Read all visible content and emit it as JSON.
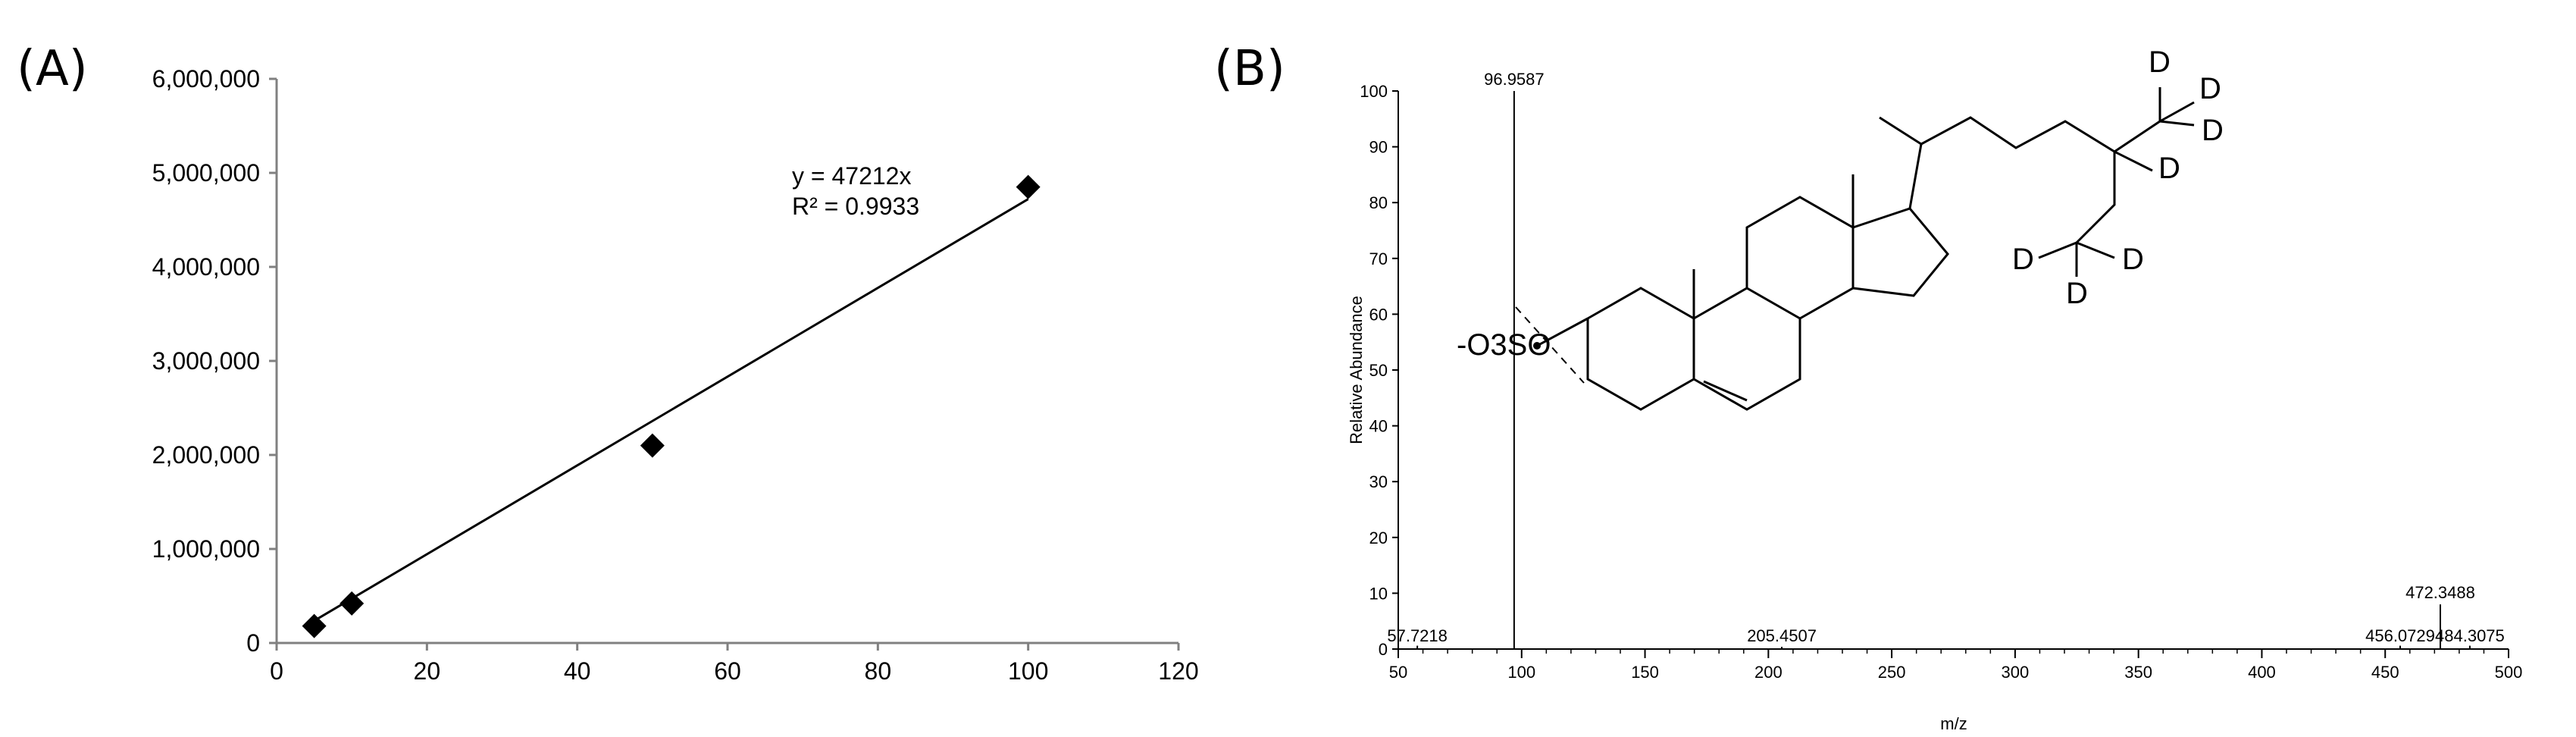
{
  "panel_labels": {
    "a": "(A)",
    "b": "(B)"
  },
  "chart_data": [
    {
      "type": "scatter",
      "panel": "(A)",
      "x": [
        5,
        10,
        50,
        100
      ],
      "y": [
        180000,
        420000,
        2100000,
        4850000
      ],
      "marker": "diamond",
      "xlim": [
        0,
        120
      ],
      "ylim": [
        0,
        6000000
      ],
      "xticks": [
        0,
        20,
        40,
        60,
        80,
        100,
        120
      ],
      "yticks": [
        0,
        1000000,
        2000000,
        3000000,
        4000000,
        5000000,
        6000000
      ],
      "xtick_labels": [
        "0",
        "20",
        "40",
        "60",
        "80",
        "100",
        "120"
      ],
      "ytick_labels": [
        "0",
        "1,000,000",
        "2,000,000",
        "3,000,000",
        "4,000,000",
        "5,000,000",
        "6,000,000"
      ],
      "trendline": {
        "slope": 47212,
        "intercept": 0,
        "x_range": [
          5,
          100
        ]
      },
      "equation": "y = 47212x",
      "r_squared": "R² = 0.9933",
      "grid": false,
      "xlabel": "",
      "ylabel": ""
    },
    {
      "type": "bar",
      "panel": "(B)",
      "xlabel": "m/z",
      "ylabel": "Relative Abundance",
      "xlim": [
        50,
        500
      ],
      "ylim": [
        0,
        100
      ],
      "xticks": [
        50,
        100,
        150,
        200,
        250,
        300,
        350,
        400,
        450,
        500
      ],
      "xtick_labels": [
        "50",
        "100",
        "150",
        "200",
        "250",
        "300",
        "350",
        "400",
        "450",
        "500"
      ],
      "yticks": [
        0,
        10,
        20,
        30,
        40,
        50,
        60,
        70,
        80,
        90,
        100
      ],
      "ytick_labels": [
        "0",
        "10",
        "20",
        "30",
        "40",
        "50",
        "60",
        "70",
        "80",
        "90",
        "100"
      ],
      "peaks": [
        {
          "mz": 57.7218,
          "abundance": 0.6,
          "label": "57.7218"
        },
        {
          "mz": 96.9587,
          "abundance": 100,
          "label": "96.9587"
        },
        {
          "mz": 205.4507,
          "abundance": 0.4,
          "label": "205.4507"
        },
        {
          "mz": 456.0729,
          "abundance": 0.6,
          "label": "456.0729"
        },
        {
          "mz": 472.3488,
          "abundance": 8,
          "label": "472.3488"
        },
        {
          "mz": 484.3075,
          "abundance": 0.6,
          "label": "484.3075"
        }
      ],
      "structure": {
        "ion_label": "-O3SO",
        "deuterium_label": "D",
        "deuterium_count": 7
      }
    }
  ]
}
